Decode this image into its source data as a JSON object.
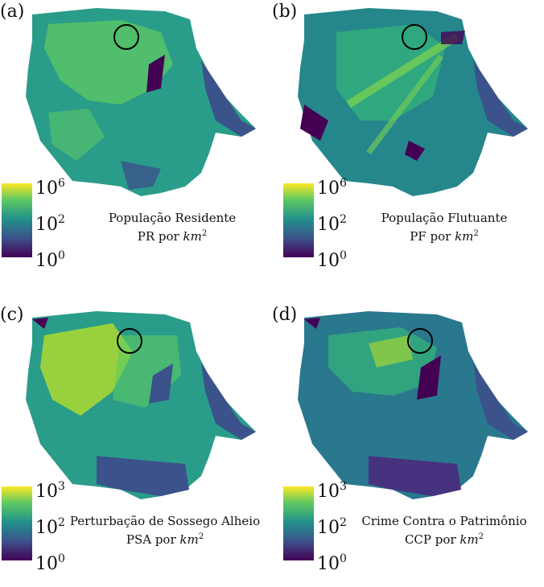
{
  "panels": [
    {
      "label": "(a)",
      "caption_line1": "População Residente",
      "caption_prefix": "PR por",
      "scale": {
        "top": "10",
        "top_exp": "6",
        "mid": "10",
        "mid_exp": "2",
        "bottom": "10",
        "bottom_exp": "0"
      }
    },
    {
      "label": "(b)",
      "caption_line1": "População Flutuante",
      "caption_prefix": "PF por",
      "scale": {
        "top": "10",
        "top_exp": "6",
        "mid": "10",
        "mid_exp": "2",
        "bottom": "10",
        "bottom_exp": "0"
      }
    },
    {
      "label": "(c)",
      "caption_line1": "Perturbação de Sossego Alheio",
      "caption_prefix": "PSA por",
      "scale": {
        "top": "10",
        "top_exp": "3",
        "mid": "10",
        "mid_exp": "2",
        "bottom": "10",
        "bottom_exp": "0"
      }
    },
    {
      "label": "(d)",
      "caption_line1": "Crime Contra o Patrimônio",
      "caption_prefix": "CCP por",
      "scale": {
        "top": "10",
        "top_exp": "3",
        "mid": "10",
        "mid_exp": "2",
        "bottom": "10",
        "bottom_exp": "0"
      }
    }
  ],
  "unit_km": "km",
  "unit_exp": "2",
  "colormap": [
    "#fde725",
    "#5ec962",
    "#21918c",
    "#3b528b",
    "#440154"
  ]
}
